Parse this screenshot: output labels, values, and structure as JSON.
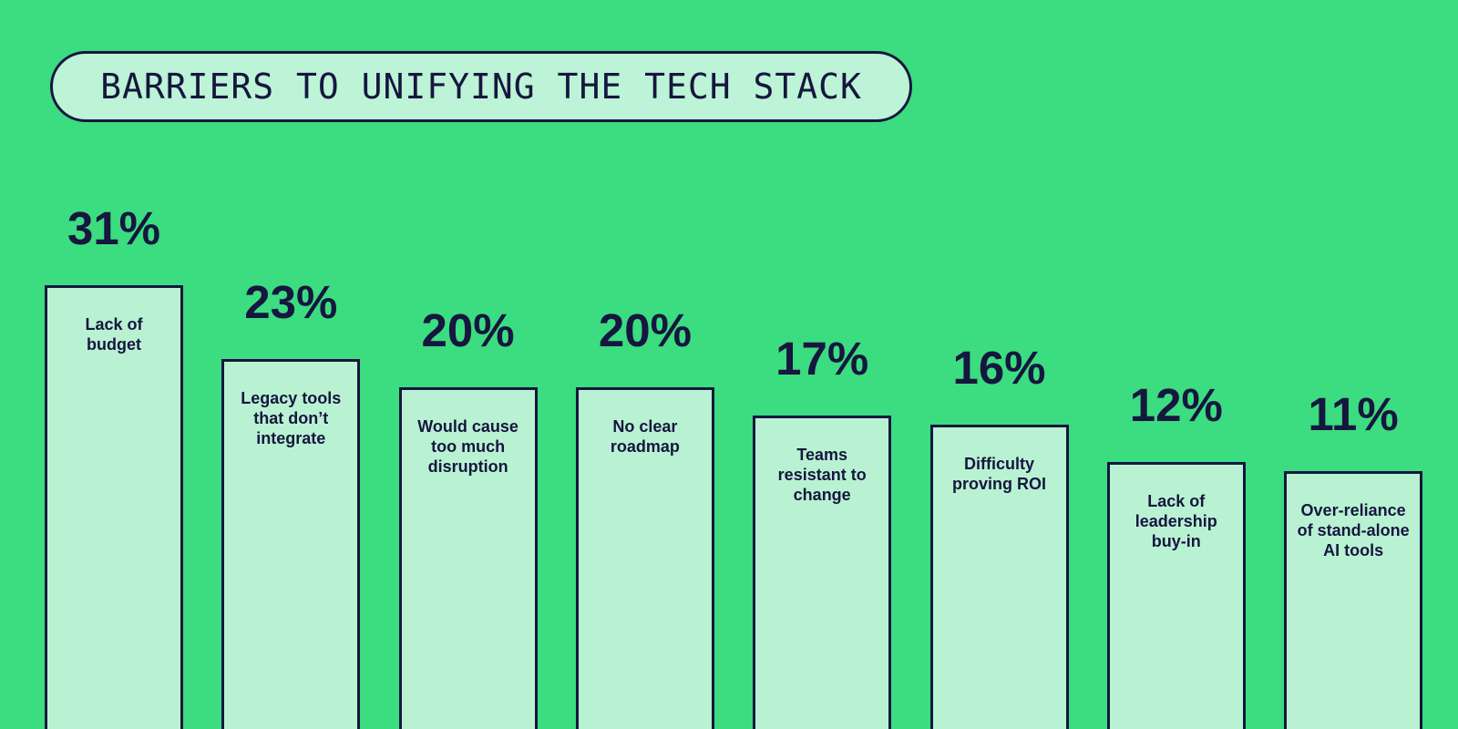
{
  "colors": {
    "background": "#3CDC80",
    "ink": "#16163F",
    "bar_fill": "#B9F2D2",
    "pill_fill": "#BDF3D6"
  },
  "title": {
    "text": "BARRIERS TO UNIFYING THE TECH STACK"
  },
  "chart_data": {
    "type": "bar",
    "title": "BARRIERS TO UNIFYING THE TECH STACK",
    "unit": "%",
    "orientation": "vertical",
    "grid": false,
    "ylim": [
      0,
      35
    ],
    "categories": [
      "Lack of budget",
      "Legacy tools that don’t integrate",
      "Would cause too much disruption",
      "No clear roadmap",
      "Teams resistant to change",
      "Difficulty proving ROI",
      "Lack of leadership buy-in",
      "Over-reliance of stand-alone AI tools"
    ],
    "values": [
      31,
      23,
      20,
      20,
      17,
      16,
      12,
      11
    ],
    "value_labels": [
      "31%",
      "23%",
      "20%",
      "20%",
      "17%",
      "16%",
      "12%",
      "11%"
    ],
    "bar_text_lines": [
      [
        "Lack of",
        "budget"
      ],
      [
        "Legacy tools",
        "that don’t",
        "integrate"
      ],
      [
        "Would cause",
        "too much",
        "disruption"
      ],
      [
        "No clear",
        "roadmap"
      ],
      [
        "Teams",
        "resistant to",
        "change"
      ],
      [
        "Difficulty",
        "proving ROI"
      ],
      [
        "Lack of",
        "leadership",
        "buy-in"
      ],
      [
        "Over-reliance",
        "of stand-alone",
        "AI tools"
      ]
    ]
  }
}
